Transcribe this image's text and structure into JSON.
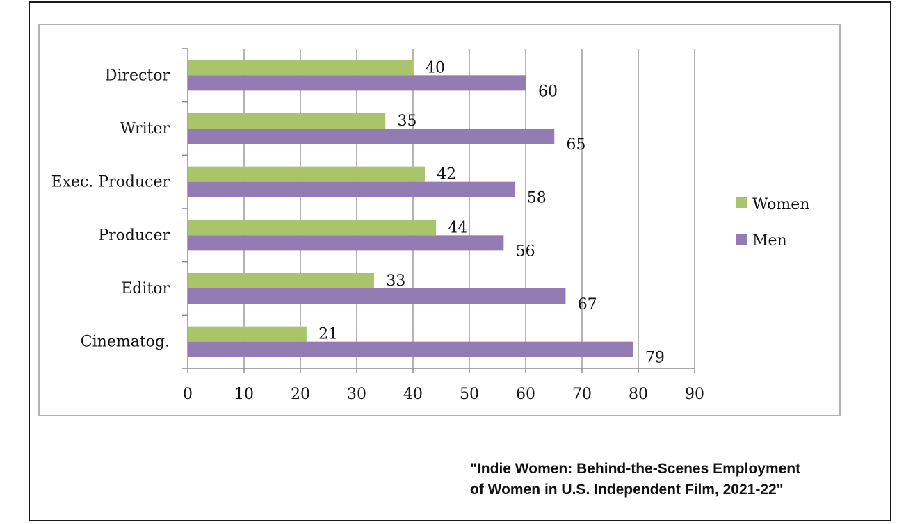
{
  "caption": {
    "line1": "\"Indie Women: Behind-the-Scenes Employment",
    "line2": "of Women in U.S. Independent Film, 2021-22\""
  },
  "chart_data": {
    "type": "bar",
    "orientation": "horizontal",
    "categories": [
      "Director",
      "Writer",
      "Exec. Producer",
      "Producer",
      "Editor",
      "Cinematog."
    ],
    "series": [
      {
        "name": "Women",
        "color": "#a9c46b",
        "values": [
          40,
          35,
          42,
          44,
          33,
          21
        ]
      },
      {
        "name": "Men",
        "color": "#937bb3",
        "values": [
          60,
          65,
          58,
          56,
          67,
          79
        ]
      }
    ],
    "xlim": [
      0,
      90
    ],
    "xticks": [
      0,
      10,
      20,
      30,
      40,
      50,
      60,
      70,
      80,
      90
    ],
    "grid": true,
    "legend": "right",
    "data_labels": true
  }
}
